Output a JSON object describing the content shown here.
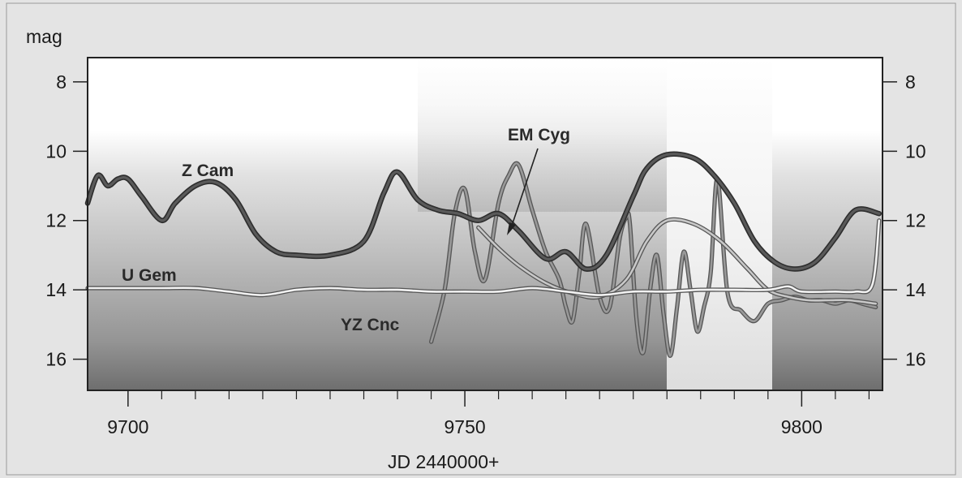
{
  "chart_data": {
    "type": "line",
    "ylabel": "mag",
    "xlabel": "JD 2440000+",
    "xlim": [
      9694,
      9812
    ],
    "ylim": [
      16.9,
      7.3
    ],
    "y_inverted": true,
    "x_ticks": [
      9700,
      9750,
      9800
    ],
    "x_tick_labels": [
      "9700",
      "9750",
      "9800"
    ],
    "x_minor_ticks": [
      9705,
      9710,
      9715,
      9720,
      9725,
      9730,
      9735,
      9740,
      9745,
      9755,
      9760,
      9765,
      9770,
      9775,
      9780,
      9785,
      9790,
      9795,
      9805,
      9810
    ],
    "y_ticks": [
      8,
      10,
      12,
      14,
      16
    ],
    "y_tick_labels": [
      "8",
      "10",
      "12",
      "14",
      "16"
    ],
    "grid": false,
    "background": "white-to-dark-gray vertical gradient with lighter vertical bands",
    "series": [
      {
        "name": "Z Cam",
        "color": "#5a5a5a",
        "style": "thick",
        "x": [
          9694,
          9695.5,
          9697,
          9698.5,
          9700,
          9702,
          9705,
          9707,
          9710,
          9713,
          9716,
          9719,
          9722,
          9725,
          9730,
          9735,
          9738,
          9740,
          9743,
          9746,
          9749,
          9752,
          9755,
          9758,
          9762,
          9765,
          9768,
          9771,
          9775,
          9777,
          9780,
          9784,
          9787,
          9790,
          9793,
          9796,
          9799,
          9802,
          9805,
          9808,
          9811.5
        ],
        "values": [
          11.5,
          10.7,
          11.0,
          10.8,
          10.8,
          11.3,
          12.0,
          11.5,
          11.0,
          10.9,
          11.4,
          12.4,
          12.9,
          13.0,
          13.0,
          12.6,
          11.2,
          10.6,
          11.4,
          11.7,
          11.8,
          12.0,
          11.8,
          12.3,
          13.1,
          12.9,
          13.4,
          13.0,
          11.3,
          10.5,
          10.1,
          10.2,
          10.7,
          11.5,
          12.6,
          13.2,
          13.4,
          13.2,
          12.5,
          11.7,
          11.8
        ]
      },
      {
        "name": "U Gem",
        "color": "#f2f2f2",
        "style": "double",
        "x": [
          9694,
          9700,
          9705,
          9710,
          9715,
          9720,
          9725,
          9730,
          9735,
          9740,
          9745,
          9750,
          9755,
          9760,
          9765,
          9770,
          9775,
          9780,
          9785,
          9790,
          9795,
          9798,
          9800,
          9805,
          9808,
          9810.5,
          9811.5
        ],
        "values": [
          13.95,
          13.95,
          13.95,
          13.95,
          14.05,
          14.15,
          14.0,
          13.95,
          14.0,
          14.0,
          14.05,
          14.05,
          14.05,
          13.95,
          14.05,
          14.15,
          14.05,
          14.05,
          14.0,
          14.0,
          14.0,
          13.9,
          14.05,
          14.05,
          14.05,
          13.85,
          12.0
        ]
      },
      {
        "name": "YZ Cnc",
        "color": "#999999",
        "style": "double",
        "x": [
          9745,
          9747,
          9748.5,
          9750,
          9751.5,
          9753,
          9755,
          9756.5,
          9758,
          9760,
          9762,
          9764,
          9765,
          9766,
          9767,
          9768,
          9770,
          9771.5,
          9773,
          9774,
          9774.5,
          9775.5,
          9776.5,
          9777.5,
          9778.5,
          9779.5,
          9780.5,
          9781.5,
          9782.5,
          9783.5,
          9784.5,
          9785.5,
          9786.5,
          9787.5,
          9789,
          9791,
          9793,
          9795,
          9797,
          9799,
          9801,
          9803,
          9805,
          9807,
          9809,
          9811
        ],
        "values": [
          15.5,
          14.0,
          11.8,
          11.1,
          12.9,
          13.7,
          11.5,
          10.7,
          10.4,
          11.7,
          12.9,
          13.7,
          14.5,
          14.9,
          13.5,
          12.1,
          14.2,
          14.5,
          12.5,
          11.9,
          12.1,
          14.9,
          15.8,
          14.0,
          13.0,
          14.7,
          15.9,
          14.5,
          12.9,
          14.0,
          15.2,
          14.5,
          13.5,
          10.8,
          14.1,
          14.6,
          14.9,
          14.4,
          14.3,
          14.2,
          14.3,
          14.3,
          14.4,
          14.3,
          14.4,
          14.5
        ]
      },
      {
        "name": "EM Cyg",
        "color": "#c8c8c8",
        "style": "double",
        "x": [
          9752,
          9755,
          9758,
          9762,
          9766,
          9770,
          9774,
          9777,
          9780,
          9784,
          9788,
          9792,
          9795,
          9798,
          9801,
          9804,
          9807,
          9811
        ],
        "values": [
          12.2,
          12.8,
          13.3,
          13.8,
          14.1,
          14.2,
          13.7,
          12.6,
          12.0,
          12.1,
          12.6,
          13.4,
          14.0,
          14.2,
          14.3,
          14.3,
          14.3,
          14.4
        ]
      }
    ],
    "annotations": [
      {
        "text": "EM Cyg",
        "type": "arrow"
      }
    ]
  }
}
